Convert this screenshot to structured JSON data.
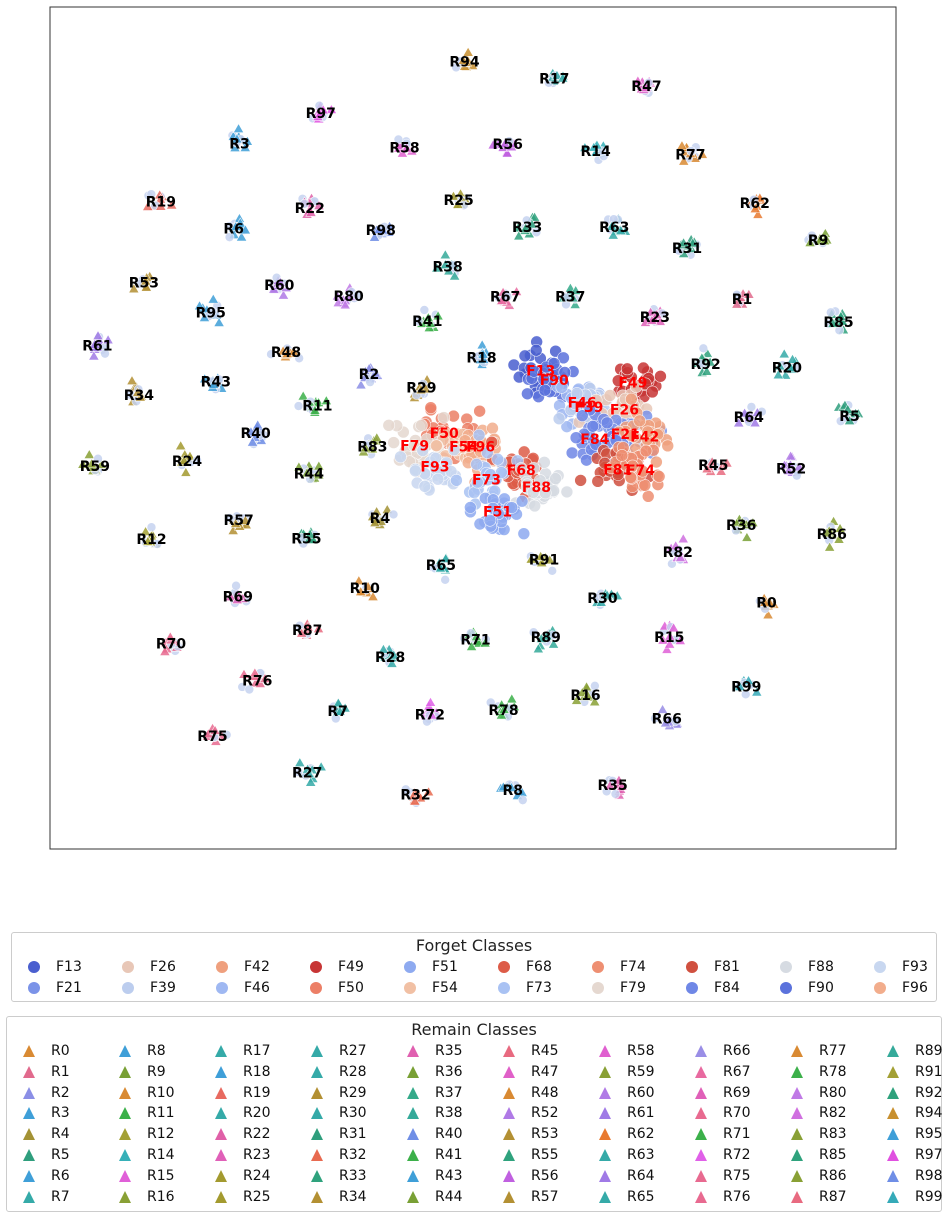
{
  "chart_data": {
    "type": "scatter",
    "title": "",
    "xlabel": "",
    "ylabel": "",
    "grid": false,
    "xlim": [
      0,
      100
    ],
    "ylim": [
      0,
      100
    ],
    "forget_legend_title": "Forget Classes",
    "remain_legend_title": "Remain Classes",
    "forget_colors": {
      "F13": "#4a5fcf",
      "F21": "#7b93e8",
      "F26": "#e8c7b7",
      "F39": "#bccdee",
      "F42": "#efa07e",
      "F46": "#9fb8f2",
      "F49": "#c73535",
      "F50": "#ec7f66",
      "F51": "#8eaaf0",
      "F54": "#f1c0a4",
      "F68": "#dd5c48",
      "F73": "#a9c2f3",
      "F74": "#ee8f72",
      "F79": "#e5d8d0",
      "F81": "#d0503f",
      "F84": "#6f87e6",
      "F88": "#d6dbe2",
      "F90": "#5b72dc",
      "F93": "#c8d7f0",
      "F96": "#f2ad8c"
    },
    "forget_order": [
      "F13",
      "F21",
      "F26",
      "F39",
      "F42",
      "F46",
      "F49",
      "F50",
      "F51",
      "F54",
      "F68",
      "F73",
      "F74",
      "F79",
      "F81",
      "F84",
      "F88",
      "F90",
      "F93",
      "F96"
    ],
    "remain_colors": {
      "R0": "#d98a33",
      "R1": "#e16a8d",
      "R2": "#8b8fe6",
      "R3": "#3f9fd8",
      "R4": "#a39235",
      "R5": "#2f9e7d",
      "R6": "#3f9fd8",
      "R7": "#35aaa8",
      "R8": "#3f9fd8",
      "R9": "#79a035",
      "R10": "#d98a33",
      "R11": "#3cb04a",
      "R12": "#a3a035",
      "R14": "#36b0b8",
      "R15": "#e060d8",
      "R16": "#89a035",
      "R17": "#35aaa8",
      "R18": "#3f9fd8",
      "R19": "#e86a60",
      "R20": "#35aaa8",
      "R22": "#e060a8",
      "R23": "#e060b8",
      "R24": "#a39a2f",
      "R25": "#a39a2f",
      "R27": "#35aaa8",
      "R28": "#35aaa8",
      "R29": "#b39033",
      "R30": "#35aaa8",
      "R31": "#2f9e7d",
      "R32": "#e86a50",
      "R33": "#2fa27d",
      "R34": "#b39033",
      "R35": "#e060b0",
      "R36": "#79a035",
      "R37": "#35aa8a",
      "R38": "#35aa9a",
      "R40": "#6f8ee6",
      "R41": "#3cb04a",
      "R43": "#3f9fd8",
      "R44": "#79a035",
      "R45": "#e86a80",
      "R47": "#e060c8",
      "R48": "#d98a33",
      "R52": "#b07ae6",
      "R53": "#b39033",
      "R55": "#2fa27d",
      "R56": "#c060e0",
      "R57": "#b39033",
      "R58": "#e060d0",
      "R59": "#89a035",
      "R60": "#b07ae6",
      "R61": "#a07ae6",
      "R62": "#e87a30",
      "R63": "#35aaa8",
      "R64": "#a07ae6",
      "R65": "#35aaa8",
      "R66": "#9a8ee6",
      "R67": "#e86aa0",
      "R69": "#e060b8",
      "R70": "#e86a90",
      "R71": "#3cb04a",
      "R72": "#e060e8",
      "R75": "#e86a90",
      "R76": "#e86a90",
      "R77": "#d98a33",
      "R78": "#3cb04a",
      "R80": "#c07ae6",
      "R82": "#d070e0",
      "R83": "#89a035",
      "R85": "#2fa27d",
      "R86": "#89a035",
      "R87": "#e86a80",
      "R89": "#35aa9a",
      "R91": "#a3a035",
      "R92": "#2fa27d",
      "R94": "#c89030",
      "R95": "#3f9fd8",
      "R97": "#e050e0",
      "R98": "#6f8ee6",
      "R99": "#35aab8"
    },
    "remain_order": [
      "R0",
      "R1",
      "R2",
      "R3",
      "R4",
      "R5",
      "R6",
      "R7",
      "R8",
      "R9",
      "R10",
      "R11",
      "R12",
      "R14",
      "R15",
      "R16",
      "R17",
      "R18",
      "R19",
      "R20",
      "R22",
      "R23",
      "R24",
      "R25",
      "R27",
      "R28",
      "R29",
      "R30",
      "R31",
      "R32",
      "R33",
      "R34",
      "R35",
      "R36",
      "R37",
      "R38",
      "R40",
      "R41",
      "R43",
      "R44",
      "R45",
      "R47",
      "R48",
      "R52",
      "R53",
      "R55",
      "R56",
      "R57",
      "R58",
      "R59",
      "R60",
      "R61",
      "R62",
      "R63",
      "R64",
      "R65",
      "R66",
      "R67",
      "R69",
      "R70",
      "R71",
      "R72",
      "R75",
      "R76",
      "R77",
      "R78",
      "R80",
      "R82",
      "R83",
      "R85",
      "R86",
      "R87",
      "R89",
      "R91",
      "R92",
      "R94",
      "R95",
      "R97",
      "R98",
      "R99"
    ],
    "remain_clusters": [
      {
        "name": "R94",
        "x": 49.0,
        "y": 93.5
      },
      {
        "name": "R17",
        "x": 59.6,
        "y": 91.5
      },
      {
        "name": "R47",
        "x": 70.5,
        "y": 90.6
      },
      {
        "name": "R97",
        "x": 32.0,
        "y": 87.4
      },
      {
        "name": "R3",
        "x": 22.4,
        "y": 83.8
      },
      {
        "name": "R58",
        "x": 41.9,
        "y": 83.3
      },
      {
        "name": "R56",
        "x": 54.1,
        "y": 83.7
      },
      {
        "name": "R14",
        "x": 64.5,
        "y": 82.9
      },
      {
        "name": "R77",
        "x": 75.7,
        "y": 82.5
      },
      {
        "name": "R19",
        "x": 13.1,
        "y": 76.9
      },
      {
        "name": "R22",
        "x": 30.7,
        "y": 76.1
      },
      {
        "name": "R25",
        "x": 48.3,
        "y": 77.1
      },
      {
        "name": "R62",
        "x": 83.3,
        "y": 76.7
      },
      {
        "name": "R6",
        "x": 21.7,
        "y": 73.7
      },
      {
        "name": "R98",
        "x": 39.1,
        "y": 73.5
      },
      {
        "name": "R33",
        "x": 56.4,
        "y": 73.9
      },
      {
        "name": "R63",
        "x": 66.7,
        "y": 73.9
      },
      {
        "name": "R9",
        "x": 90.8,
        "y": 72.3
      },
      {
        "name": "R31",
        "x": 75.3,
        "y": 71.4
      },
      {
        "name": "R38",
        "x": 47.0,
        "y": 69.2
      },
      {
        "name": "R53",
        "x": 11.1,
        "y": 67.3
      },
      {
        "name": "R60",
        "x": 27.1,
        "y": 67.0
      },
      {
        "name": "R80",
        "x": 35.3,
        "y": 65.7
      },
      {
        "name": "R67",
        "x": 53.8,
        "y": 65.6
      },
      {
        "name": "R37",
        "x": 61.5,
        "y": 65.6
      },
      {
        "name": "R1",
        "x": 81.8,
        "y": 65.3
      },
      {
        "name": "R95",
        "x": 19.0,
        "y": 63.7
      },
      {
        "name": "R41",
        "x": 44.6,
        "y": 62.7
      },
      {
        "name": "R23",
        "x": 71.5,
        "y": 63.2
      },
      {
        "name": "R85",
        "x": 93.2,
        "y": 62.6
      },
      {
        "name": "R61",
        "x": 5.6,
        "y": 59.8
      },
      {
        "name": "R48",
        "x": 27.9,
        "y": 59.0
      },
      {
        "name": "R18",
        "x": 51.0,
        "y": 58.4
      },
      {
        "name": "R92",
        "x": 77.5,
        "y": 57.6
      },
      {
        "name": "R2",
        "x": 37.7,
        "y": 56.4
      },
      {
        "name": "R20",
        "x": 87.1,
        "y": 57.2
      },
      {
        "name": "R43",
        "x": 19.6,
        "y": 55.5
      },
      {
        "name": "R34",
        "x": 10.5,
        "y": 53.9
      },
      {
        "name": "R29",
        "x": 43.9,
        "y": 54.8
      },
      {
        "name": "R11",
        "x": 31.6,
        "y": 52.7
      },
      {
        "name": "R64",
        "x": 82.6,
        "y": 51.3
      },
      {
        "name": "R5",
        "x": 94.5,
        "y": 51.4
      },
      {
        "name": "R40",
        "x": 24.3,
        "y": 49.4
      },
      {
        "name": "R83",
        "x": 38.1,
        "y": 47.8
      },
      {
        "name": "R24",
        "x": 16.2,
        "y": 46.1
      },
      {
        "name": "R59",
        "x": 5.3,
        "y": 45.5
      },
      {
        "name": "R45",
        "x": 78.4,
        "y": 45.6
      },
      {
        "name": "R52",
        "x": 87.6,
        "y": 45.2
      },
      {
        "name": "R44",
        "x": 30.6,
        "y": 44.6
      },
      {
        "name": "R57",
        "x": 22.3,
        "y": 39.1
      },
      {
        "name": "R4",
        "x": 39.0,
        "y": 39.3
      },
      {
        "name": "R36",
        "x": 81.7,
        "y": 38.5
      },
      {
        "name": "R12",
        "x": 12.0,
        "y": 36.8
      },
      {
        "name": "R55",
        "x": 30.3,
        "y": 36.9
      },
      {
        "name": "R86",
        "x": 92.4,
        "y": 37.4
      },
      {
        "name": "R82",
        "x": 74.2,
        "y": 35.3
      },
      {
        "name": "R91",
        "x": 58.4,
        "y": 34.4
      },
      {
        "name": "R65",
        "x": 46.2,
        "y": 33.7
      },
      {
        "name": "R10",
        "x": 37.2,
        "y": 31.0
      },
      {
        "name": "R69",
        "x": 22.2,
        "y": 30.0
      },
      {
        "name": "R30",
        "x": 65.3,
        "y": 29.8
      },
      {
        "name": "R0",
        "x": 84.7,
        "y": 29.3
      },
      {
        "name": "R87",
        "x": 30.4,
        "y": 26.0
      },
      {
        "name": "R71",
        "x": 50.3,
        "y": 24.9
      },
      {
        "name": "R89",
        "x": 58.6,
        "y": 25.2
      },
      {
        "name": "R15",
        "x": 73.2,
        "y": 25.2
      },
      {
        "name": "R70",
        "x": 14.3,
        "y": 24.4
      },
      {
        "name": "R28",
        "x": 40.2,
        "y": 22.8
      },
      {
        "name": "R76",
        "x": 24.5,
        "y": 20.0
      },
      {
        "name": "R16",
        "x": 63.3,
        "y": 18.3
      },
      {
        "name": "R99",
        "x": 82.3,
        "y": 19.3
      },
      {
        "name": "R7",
        "x": 34.0,
        "y": 16.4
      },
      {
        "name": "R72",
        "x": 44.9,
        "y": 16.0
      },
      {
        "name": "R78",
        "x": 53.6,
        "y": 16.5
      },
      {
        "name": "R66",
        "x": 72.9,
        "y": 15.5
      },
      {
        "name": "R75",
        "x": 19.2,
        "y": 13.4
      },
      {
        "name": "R27",
        "x": 30.4,
        "y": 9.1
      },
      {
        "name": "R35",
        "x": 66.5,
        "y": 7.6
      },
      {
        "name": "R32",
        "x": 43.2,
        "y": 6.5
      },
      {
        "name": "R8",
        "x": 54.7,
        "y": 7.0
      }
    ],
    "forget_clusters": [
      {
        "name": "F13",
        "x": 58.0,
        "y": 56.8
      },
      {
        "name": "F90",
        "x": 59.6,
        "y": 55.7
      },
      {
        "name": "F49",
        "x": 68.9,
        "y": 55.4
      },
      {
        "name": "F46",
        "x": 62.9,
        "y": 53.0
      },
      {
        "name": "F39",
        "x": 63.7,
        "y": 52.5
      },
      {
        "name": "F26",
        "x": 67.9,
        "y": 52.2
      },
      {
        "name": "F50",
        "x": 46.6,
        "y": 49.4
      },
      {
        "name": "F21",
        "x": 68.0,
        "y": 49.3
      },
      {
        "name": "F42",
        "x": 70.3,
        "y": 49.0
      },
      {
        "name": "F84",
        "x": 64.4,
        "y": 48.7
      },
      {
        "name": "F79",
        "x": 43.1,
        "y": 47.9
      },
      {
        "name": "F54",
        "x": 48.9,
        "y": 47.8
      },
      {
        "name": "F96",
        "x": 50.9,
        "y": 47.8
      },
      {
        "name": "F93",
        "x": 45.5,
        "y": 45.4
      },
      {
        "name": "F68",
        "x": 55.7,
        "y": 45.0
      },
      {
        "name": "F81",
        "x": 67.1,
        "y": 45.1
      },
      {
        "name": "F74",
        "x": 69.8,
        "y": 45.0
      },
      {
        "name": "F73",
        "x": 51.6,
        "y": 43.9
      },
      {
        "name": "F88",
        "x": 57.5,
        "y": 43.0
      },
      {
        "name": "F51",
        "x": 52.9,
        "y": 40.1
      }
    ]
  }
}
